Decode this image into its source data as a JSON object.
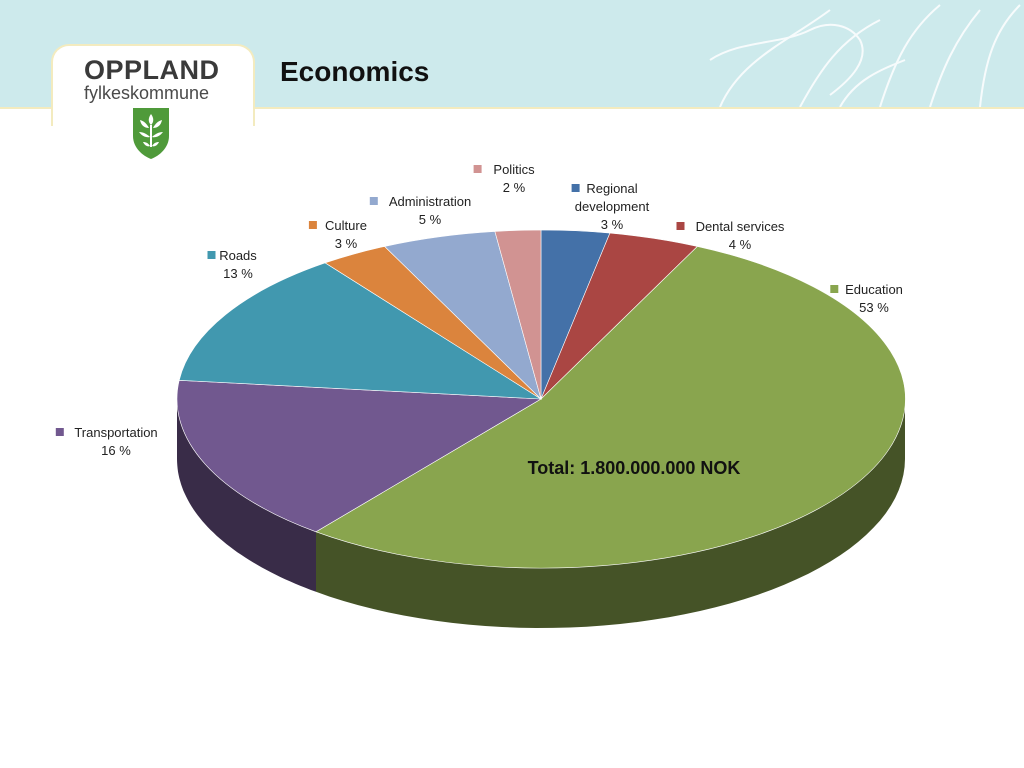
{
  "header": {
    "logo_title": "OPPLAND",
    "logo_subtitle": "fylkeskommune",
    "page_title": "Economics"
  },
  "chart_data": {
    "type": "pie",
    "title": "",
    "total_label": "Total: 1.800.000.000 NOK",
    "slices": [
      {
        "name": "Regional development",
        "label_lines": [
          "Regional",
          "development"
        ],
        "value": 3,
        "value_label": "3 %",
        "color": "#4471a8"
      },
      {
        "name": "Dental services",
        "label_lines": [
          "Dental services"
        ],
        "value": 4,
        "value_label": "4 %",
        "color": "#aa4643"
      },
      {
        "name": "Education",
        "label_lines": [
          "Education"
        ],
        "value": 53,
        "value_label": "53 %",
        "color": "#89a54e"
      },
      {
        "name": "Transportation",
        "label_lines": [
          "Transportation"
        ],
        "value": 16,
        "value_label": "16 %",
        "color": "#71588f"
      },
      {
        "name": "Roads",
        "label_lines": [
          "Roads"
        ],
        "value": 13,
        "value_label": "13 %",
        "color": "#4198af"
      },
      {
        "name": "Culture",
        "label_lines": [
          "Culture"
        ],
        "value": 3,
        "value_label": "3 %",
        "color": "#db843d"
      },
      {
        "name": "Administration",
        "label_lines": [
          "Administration"
        ],
        "value": 5,
        "value_label": "5 %",
        "color": "#93a9cf"
      },
      {
        "name": "Politics",
        "label_lines": [
          "Politics"
        ],
        "value": 2,
        "value_label": "2 %",
        "color": "#d19392"
      }
    ]
  }
}
